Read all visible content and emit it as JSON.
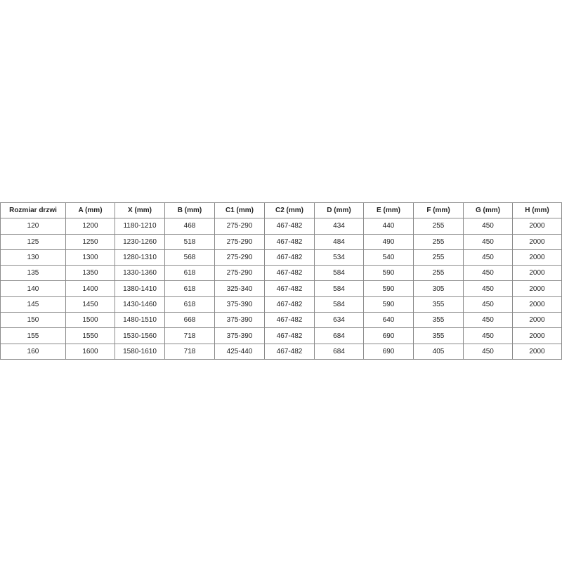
{
  "table": {
    "headers": [
      "Rozmiar drzwi",
      "A (mm)",
      "X (mm)",
      "B (mm)",
      "C1 (mm)",
      "C2 (mm)",
      "D (mm)",
      "E (mm)",
      "F (mm)",
      "G (mm)",
      "H (mm)"
    ],
    "rows": [
      [
        "120",
        "1200",
        "1180-1210",
        "468",
        "275-290",
        "467-482",
        "434",
        "440",
        "255",
        "450",
        "2000"
      ],
      [
        "125",
        "1250",
        "1230-1260",
        "518",
        "275-290",
        "467-482",
        "484",
        "490",
        "255",
        "450",
        "2000"
      ],
      [
        "130",
        "1300",
        "1280-1310",
        "568",
        "275-290",
        "467-482",
        "534",
        "540",
        "255",
        "450",
        "2000"
      ],
      [
        "135",
        "1350",
        "1330-1360",
        "618",
        "275-290",
        "467-482",
        "584",
        "590",
        "255",
        "450",
        "2000"
      ],
      [
        "140",
        "1400",
        "1380-1410",
        "618",
        "325-340",
        "467-482",
        "584",
        "590",
        "305",
        "450",
        "2000"
      ],
      [
        "145",
        "1450",
        "1430-1460",
        "618",
        "375-390",
        "467-482",
        "584",
        "590",
        "355",
        "450",
        "2000"
      ],
      [
        "150",
        "1500",
        "1480-1510",
        "668",
        "375-390",
        "467-482",
        "634",
        "640",
        "355",
        "450",
        "2000"
      ],
      [
        "155",
        "1550",
        "1530-1560",
        "718",
        "375-390",
        "467-482",
        "684",
        "690",
        "355",
        "450",
        "2000"
      ],
      [
        "160",
        "1600",
        "1580-1610",
        "718",
        "425-440",
        "467-482",
        "684",
        "690",
        "405",
        "450",
        "2000"
      ]
    ]
  }
}
